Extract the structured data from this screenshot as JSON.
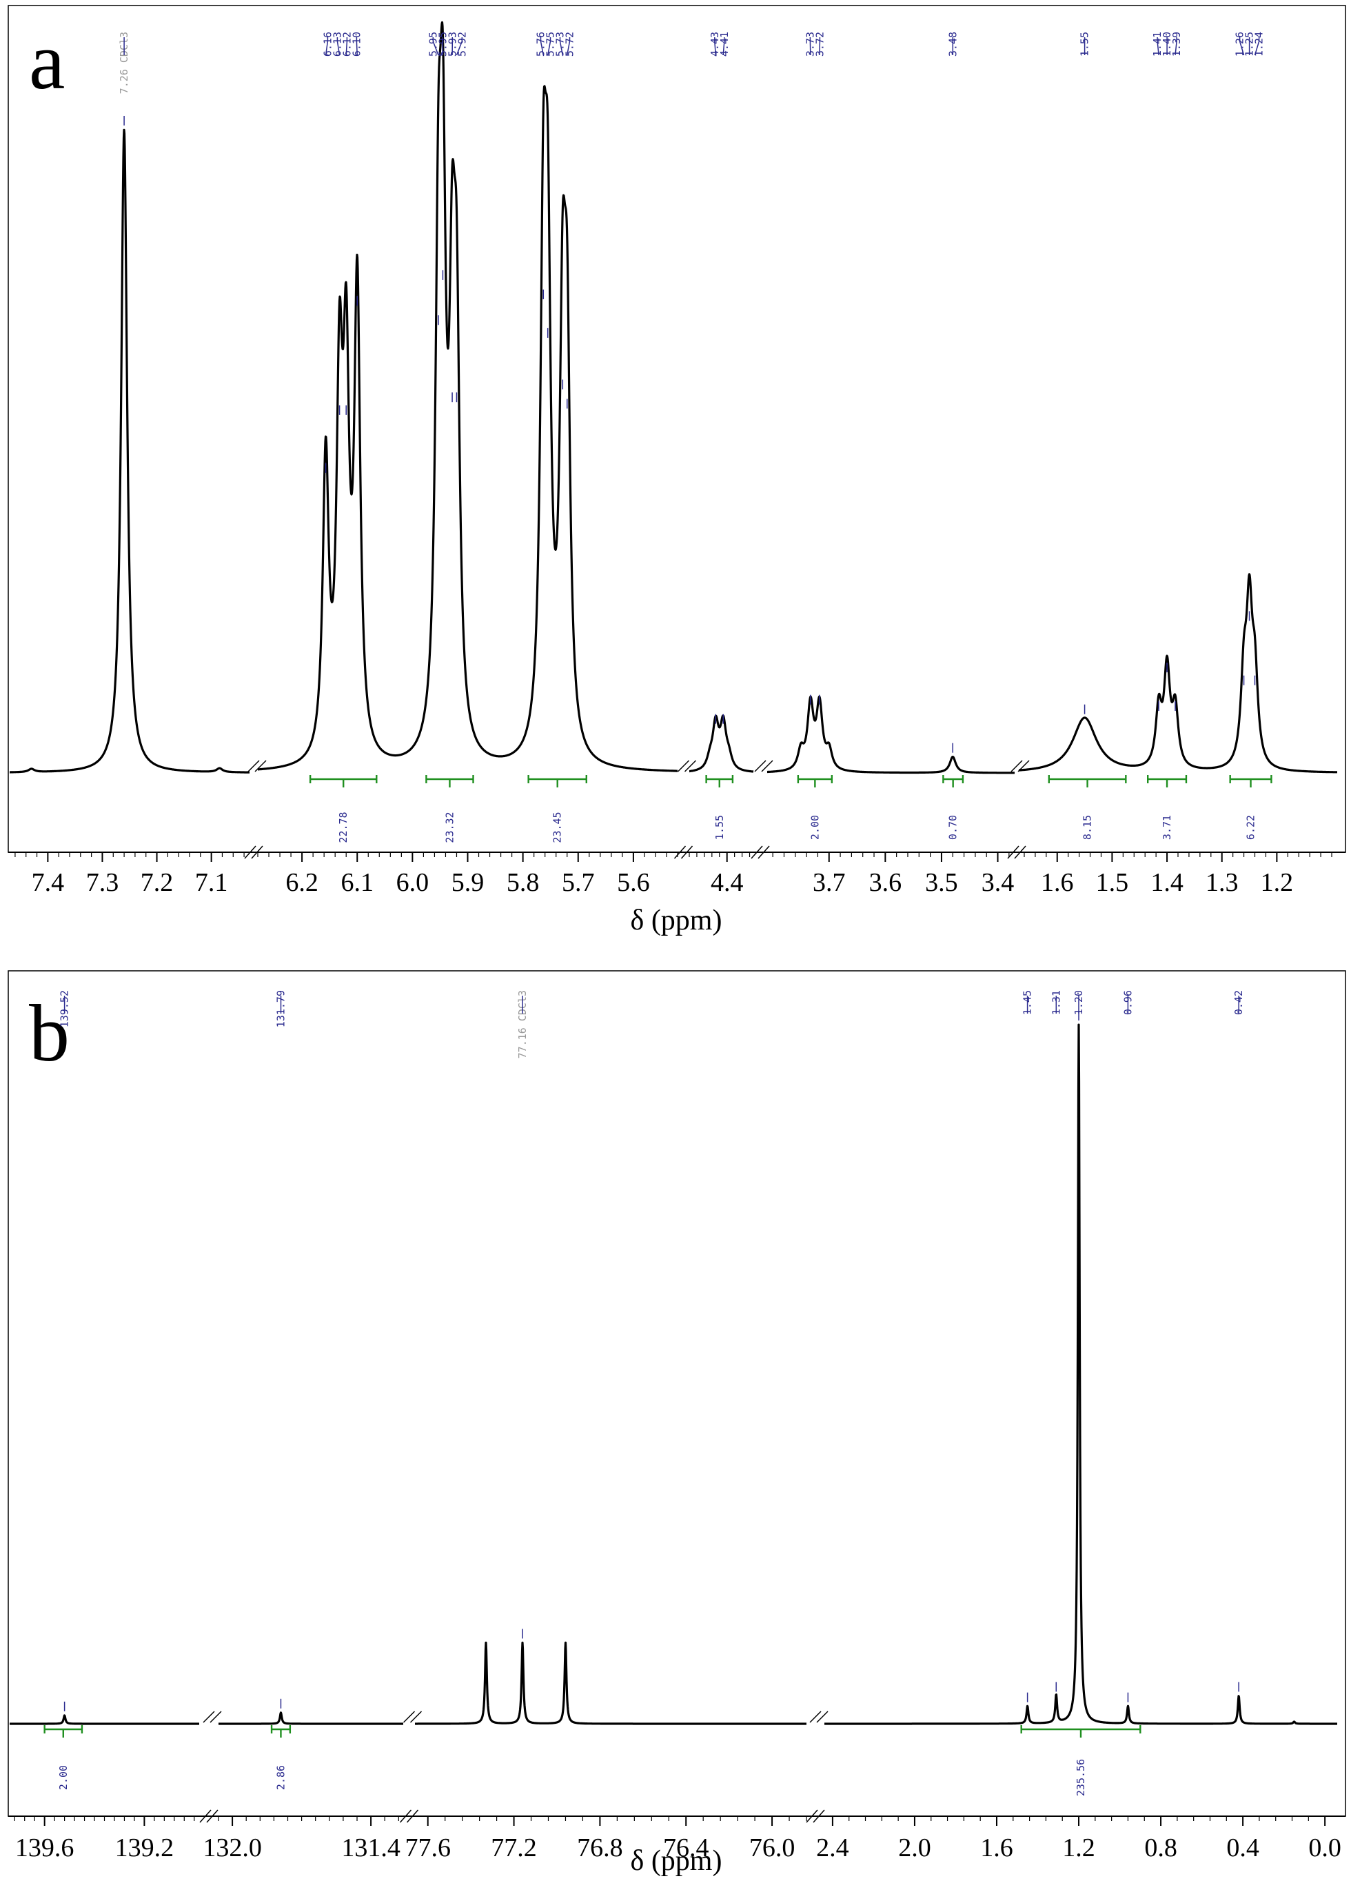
{
  "chart_data": [
    {
      "type": "line",
      "panel": "a",
      "xlabel": "δ (ppm)",
      "segments": [
        {
          "range": [
            7.47,
            7.03
          ],
          "ticks": [
            "7.4",
            "7.3",
            "7.2",
            "7.1"
          ]
        },
        {
          "range": [
            6.28,
            5.52
          ],
          "ticks": [
            "6.2",
            "6.1",
            "6.0",
            "5.9",
            "5.8",
            "5.7",
            "5.6"
          ]
        },
        {
          "range": [
            4.5,
            4.33
          ],
          "ticks": [
            "4.4"
          ]
        },
        {
          "range": [
            3.81,
            3.37
          ],
          "ticks": [
            "3.7",
            "3.6",
            "3.5",
            "3.4"
          ]
        },
        {
          "range": [
            1.67,
            1.09
          ],
          "ticks": [
            "1.6",
            "1.5",
            "1.4",
            "1.3",
            "1.2"
          ]
        }
      ],
      "peaks": [
        {
          "x": 7.26,
          "h": 1.0
        },
        {
          "x": 7.085,
          "h": 0.006
        },
        {
          "x": 7.43,
          "h": 0.005
        },
        {
          "x": 6.157,
          "h": 0.46
        },
        {
          "x": 6.132,
          "h": 0.55
        },
        {
          "x": 6.12,
          "h": 0.55
        },
        {
          "x": 6.1,
          "h": 0.72
        },
        {
          "x": 5.953,
          "h": 0.69
        },
        {
          "x": 5.945,
          "h": 0.76
        },
        {
          "x": 5.928,
          "h": 0.57
        },
        {
          "x": 5.92,
          "h": 0.57
        },
        {
          "x": 5.763,
          "h": 0.73
        },
        {
          "x": 5.755,
          "h": 0.67
        },
        {
          "x": 5.728,
          "h": 0.59
        },
        {
          "x": 5.72,
          "h": 0.56
        },
        {
          "x": 4.445,
          "h": 0.016
        },
        {
          "x": 4.43,
          "h": 0.07
        },
        {
          "x": 4.41,
          "h": 0.07
        },
        {
          "x": 4.395,
          "h": 0.018
        },
        {
          "x": 3.75,
          "h": 0.03
        },
        {
          "x": 3.733,
          "h": 0.1
        },
        {
          "x": 3.717,
          "h": 0.1
        },
        {
          "x": 3.7,
          "h": 0.03
        },
        {
          "x": 3.48,
          "h": 0.025
        },
        {
          "x": 1.55,
          "h": 0.085
        },
        {
          "x": 1.415,
          "h": 0.09
        },
        {
          "x": 1.4,
          "h": 0.15
        },
        {
          "x": 1.385,
          "h": 0.09
        },
        {
          "x": 1.26,
          "h": 0.13
        },
        {
          "x": 1.25,
          "h": 0.23
        },
        {
          "x": 1.24,
          "h": 0.13
        }
      ],
      "peak_labels": [
        {
          "text": "7.26 CDCl3",
          "x": 7.26,
          "solvent": true
        },
        {
          "text": "6.16",
          "x": 6.157
        },
        {
          "text": "6.13",
          "x": 6.132
        },
        {
          "text": "6.12",
          "x": 6.12
        },
        {
          "text": "6.10",
          "x": 6.1
        },
        {
          "text": "5.95",
          "x": 5.953
        },
        {
          "text": "5.95",
          "x": 5.945
        },
        {
          "text": "5.93",
          "x": 5.928
        },
        {
          "text": "5.92",
          "x": 5.92
        },
        {
          "text": "5.76",
          "x": 5.763
        },
        {
          "text": "5.75",
          "x": 5.755
        },
        {
          "text": "5.73",
          "x": 5.728
        },
        {
          "text": "5.72",
          "x": 5.72
        },
        {
          "text": "4.43",
          "x": 4.43
        },
        {
          "text": "4.41",
          "x": 4.41
        },
        {
          "text": "3.73",
          "x": 3.733
        },
        {
          "text": "3.72",
          "x": 3.717
        },
        {
          "text": "3.48",
          "x": 3.48
        },
        {
          "text": "1.55",
          "x": 1.55
        },
        {
          "text": "1.41",
          "x": 1.415
        },
        {
          "text": "1.40",
          "x": 1.4
        },
        {
          "text": "1.39",
          "x": 1.385
        },
        {
          "text": "1.26",
          "x": 1.26
        },
        {
          "text": "1.25",
          "x": 1.25
        },
        {
          "text": "1.24",
          "x": 1.24
        }
      ],
      "integrals": [
        {
          "from": 6.185,
          "to": 6.065,
          "value": "22.78"
        },
        {
          "from": 5.975,
          "to": 5.89,
          "value": "23.32"
        },
        {
          "from": 5.79,
          "to": 5.685,
          "value": "23.45"
        },
        {
          "from": 4.455,
          "to": 4.385,
          "value": "1.55"
        },
        {
          "from": 3.755,
          "to": 3.695,
          "value": "2.00"
        },
        {
          "from": 3.497,
          "to": 3.462,
          "value": "0.70"
        },
        {
          "from": 1.615,
          "to": 1.475,
          "value": "8.15"
        },
        {
          "from": 1.435,
          "to": 1.365,
          "value": "3.71"
        },
        {
          "from": 1.285,
          "to": 1.21,
          "value": "6.22"
        }
      ]
    },
    {
      "type": "line",
      "panel": "b",
      "xlabel": "δ (ppm)",
      "segments": [
        {
          "range": [
            139.74,
            138.98
          ],
          "ticks": [
            "139.6",
            "139.2"
          ]
        },
        {
          "range": [
            132.06,
            131.26
          ],
          "ticks": [
            "132.0",
            "131.4"
          ]
        },
        {
          "range": [
            77.66,
            75.84
          ],
          "ticks": [
            "77.6",
            "77.2",
            "76.8",
            "76.4",
            "76.0"
          ]
        },
        {
          "range": [
            2.44,
            -0.06
          ],
          "ticks": [
            "2.4",
            "2.0",
            "1.6",
            "1.2",
            "0.8",
            "0.4",
            "0.0"
          ]
        }
      ],
      "peaks": [
        {
          "x": 139.52,
          "h": 0.012
        },
        {
          "x": 131.79,
          "h": 0.016
        },
        {
          "x": 77.33,
          "h": 0.116
        },
        {
          "x": 77.16,
          "h": 0.116
        },
        {
          "x": 76.96,
          "h": 0.116
        },
        {
          "x": 1.45,
          "h": 0.025
        },
        {
          "x": 1.31,
          "h": 0.04
        },
        {
          "x": 1.2,
          "h": 1.0
        },
        {
          "x": 0.96,
          "h": 0.025
        },
        {
          "x": 0.42,
          "h": 0.04
        },
        {
          "x": 0.15,
          "h": 0.003
        }
      ],
      "peak_labels": [
        {
          "text": "139.52",
          "x": 139.52
        },
        {
          "text": "131.79",
          "x": 131.79
        },
        {
          "text": "77.16 CDCl3",
          "x": 77.16,
          "solvent": true
        },
        {
          "text": "1.45",
          "x": 1.45
        },
        {
          "text": "1.31",
          "x": 1.31
        },
        {
          "text": "1.20",
          "x": 1.2
        },
        {
          "text": "0.96",
          "x": 0.96
        },
        {
          "text": "0.42",
          "x": 0.42
        }
      ],
      "integrals": [
        {
          "from": 139.6,
          "to": 139.45,
          "value": "2.00"
        },
        {
          "from": 131.83,
          "to": 131.75,
          "value": "2.86"
        },
        {
          "from": 1.48,
          "to": 0.9,
          "value": "235.56"
        }
      ]
    }
  ]
}
